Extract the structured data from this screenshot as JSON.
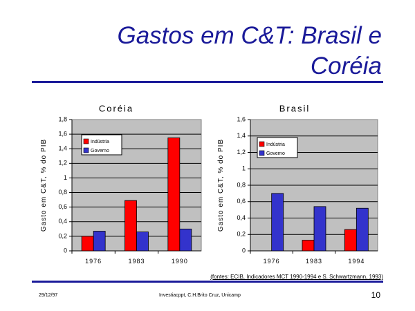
{
  "slide": {
    "title": "Gastos em C&T: Brasil e Coréia",
    "source": "(fontes: ECIB, Indicadores MCT 1990-1994 e S. Schwartzmann, 1993)",
    "date": "29/12/97",
    "file": "Investiacppt, C.H.Brito Cruz, Unicamp",
    "page": "10"
  },
  "colors": {
    "title": "#1a1a99",
    "industria": "#ff0000",
    "governo": "#3333cc",
    "plot_bg": "#c0c0c0"
  },
  "chart_data": [
    {
      "type": "bar",
      "title": "Coréia",
      "ylabel": "Gasto em C&T, % do PIB",
      "xlabel": "",
      "categories": [
        "1976",
        "1983",
        "1990"
      ],
      "ylim": [
        0,
        1.8
      ],
      "yticks": [
        "0",
        "0,2",
        "0,4",
        "0,6",
        "0,8",
        "1",
        "1,2",
        "1,4",
        "1,6",
        "1,8"
      ],
      "grid": true,
      "legend": "top-left",
      "series": [
        {
          "name": "Indústria",
          "color": "#ff0000",
          "values": [
            0.2,
            0.69,
            1.55
          ]
        },
        {
          "name": "Governo",
          "color": "#3333cc",
          "values": [
            0.27,
            0.26,
            0.3
          ]
        }
      ]
    },
    {
      "type": "bar",
      "title": "Brasil",
      "ylabel": "Gasto em C&T, % do PIB",
      "xlabel": "",
      "categories": [
        "1976",
        "1983",
        "1994"
      ],
      "ylim": [
        0,
        1.6
      ],
      "yticks": [
        "0",
        "0,2",
        "0,4",
        "0,6",
        "0,8",
        "1",
        "1,2",
        "1,4",
        "1,6"
      ],
      "grid": true,
      "legend": "top-left",
      "series": [
        {
          "name": "Indústria",
          "color": "#ff0000",
          "values": [
            0,
            0.13,
            0.26
          ]
        },
        {
          "name": "Governo",
          "color": "#3333cc",
          "values": [
            0.7,
            0.54,
            0.52
          ]
        }
      ]
    }
  ]
}
